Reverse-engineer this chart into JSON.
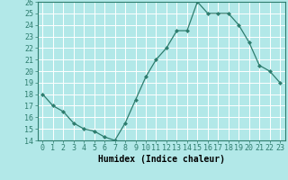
{
  "x": [
    0,
    1,
    2,
    3,
    4,
    5,
    6,
    7,
    8,
    9,
    10,
    11,
    12,
    13,
    14,
    15,
    16,
    17,
    18,
    19,
    20,
    21,
    22,
    23
  ],
  "y": [
    18.0,
    17.0,
    16.5,
    15.5,
    15.0,
    14.8,
    14.3,
    14.0,
    15.5,
    17.5,
    19.5,
    21.0,
    22.0,
    23.5,
    23.5,
    26.0,
    25.0,
    25.0,
    25.0,
    24.0,
    22.5,
    20.5,
    20.0,
    19.0
  ],
  "title": "",
  "xlabel": "Humidex (Indice chaleur)",
  "ylabel": "",
  "xlim": [
    -0.5,
    23.5
  ],
  "ylim": [
    14,
    26
  ],
  "yticks": [
    14,
    15,
    16,
    17,
    18,
    19,
    20,
    21,
    22,
    23,
    24,
    25,
    26
  ],
  "xticks": [
    0,
    1,
    2,
    3,
    4,
    5,
    6,
    7,
    8,
    9,
    10,
    11,
    12,
    13,
    14,
    15,
    16,
    17,
    18,
    19,
    20,
    21,
    22,
    23
  ],
  "line_color": "#2e7d6e",
  "marker": "D",
  "marker_size": 2.0,
  "bg_color": "#b2e8e8",
  "grid_color": "#ffffff",
  "xlabel_fontsize": 7,
  "tick_fontsize": 6
}
